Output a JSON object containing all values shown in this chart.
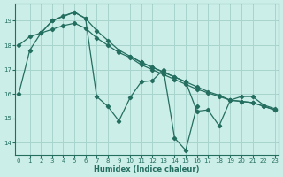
{
  "xlabel": "Humidex (Indice chaleur)",
  "xlim": [
    -0.3,
    23.3
  ],
  "ylim": [
    13.5,
    19.7
  ],
  "yticks": [
    14,
    15,
    16,
    17,
    18,
    19
  ],
  "xticks": [
    0,
    1,
    2,
    3,
    4,
    5,
    6,
    7,
    8,
    9,
    10,
    11,
    12,
    13,
    14,
    15,
    16,
    17,
    18,
    19,
    20,
    21,
    22,
    23
  ],
  "bg_color": "#cceee8",
  "grid_color": "#a8d4ce",
  "line_color": "#246e60",
  "series": [
    {
      "x": [
        0,
        1,
        2,
        3,
        4,
        5,
        6,
        7,
        8,
        9,
        10,
        11,
        12,
        13,
        14,
        15,
        16,
        17,
        18,
        19,
        20,
        21,
        22,
        23
      ],
      "y": [
        18.0,
        18.35,
        18.5,
        18.65,
        18.8,
        18.9,
        18.7,
        18.3,
        18.0,
        17.7,
        17.5,
        17.2,
        17.0,
        16.8,
        16.6,
        16.4,
        16.2,
        16.05,
        15.9,
        15.75,
        15.9,
        15.9,
        15.55,
        15.4
      ]
    },
    {
      "x": [
        0,
        1,
        2,
        3,
        4,
        5,
        6,
        7,
        8,
        9,
        10,
        11,
        12,
        13,
        14,
        15,
        16,
        17,
        18,
        19,
        20,
        21,
        22,
        23
      ],
      "y": [
        16.0,
        17.8,
        18.5,
        19.0,
        19.2,
        19.35,
        19.1,
        18.6,
        18.2,
        17.8,
        17.55,
        17.3,
        17.1,
        16.9,
        16.7,
        16.5,
        16.3,
        16.1,
        15.95,
        15.75,
        15.7,
        15.65,
        15.5,
        15.35
      ]
    },
    {
      "x": [
        2,
        3,
        5,
        6,
        7,
        8,
        9,
        10,
        11,
        12,
        13,
        14,
        15,
        16
      ],
      "y": [
        18.5,
        19.0,
        19.35,
        19.1,
        15.9,
        15.5,
        14.9,
        15.85,
        16.5,
        16.55,
        17.0,
        14.2,
        13.7,
        15.5
      ]
    },
    {
      "x": [
        10,
        11,
        12,
        13,
        14,
        15,
        16,
        17,
        18,
        19,
        20,
        21,
        22,
        23
      ],
      "y": [
        17.55,
        17.3,
        17.1,
        16.9,
        16.7,
        16.5,
        15.3,
        15.35,
        14.7,
        15.75,
        15.7,
        15.65,
        15.5,
        15.35
      ]
    }
  ]
}
